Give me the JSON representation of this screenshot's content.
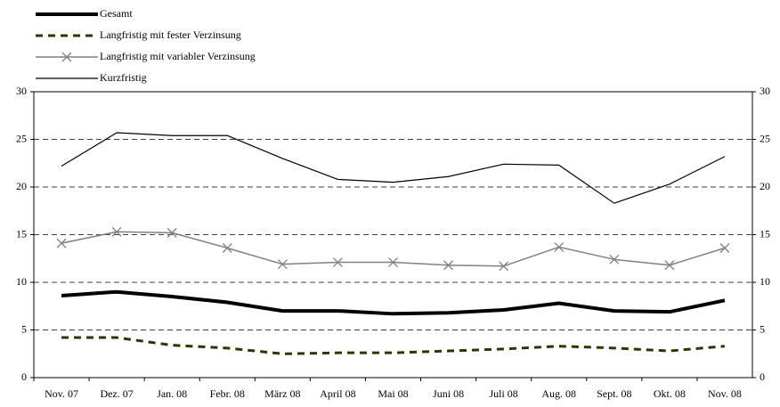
{
  "chart_data": {
    "type": "line",
    "categories": [
      "Nov. 07",
      "Dez. 07",
      "Jan. 08",
      "Febr. 08",
      "März 08",
      "April 08",
      "Mai 08",
      "Juni 08",
      "Juli 08",
      "Aug. 08",
      "Sept. 08",
      "Okt. 08",
      "Nov. 08"
    ],
    "series": [
      {
        "name": "Gesamt",
        "color": "#000000",
        "linewidth": 4,
        "dash": false,
        "marker": null,
        "values": [
          8.6,
          9.0,
          8.5,
          7.9,
          7.0,
          7.0,
          6.7,
          6.8,
          7.1,
          7.8,
          7.0,
          6.9,
          8.1
        ]
      },
      {
        "name": "Langfristig mit fester Verzinsung",
        "color": "#333300",
        "linewidth": 3,
        "dash": true,
        "marker": null,
        "values": [
          4.2,
          4.2,
          3.4,
          3.1,
          2.5,
          2.6,
          2.6,
          2.8,
          3.0,
          3.3,
          3.1,
          2.8,
          3.3
        ]
      },
      {
        "name": "Langfristig mit variabler Verzinsung",
        "color": "#808080",
        "linewidth": 1.5,
        "dash": false,
        "marker": "x",
        "values": [
          14.1,
          15.3,
          15.2,
          13.6,
          11.9,
          12.1,
          12.1,
          11.8,
          11.7,
          13.7,
          12.4,
          11.8,
          13.6
        ]
      },
      {
        "name": "Kurzfristig",
        "color": "#000000",
        "linewidth": 1.2,
        "dash": false,
        "marker": null,
        "values": [
          22.2,
          25.7,
          25.4,
          25.4,
          23.0,
          20.8,
          20.5,
          21.1,
          22.4,
          22.3,
          18.3,
          20.3,
          23.2
        ]
      }
    ],
    "ylim": [
      0,
      30
    ],
    "yticks": [
      0,
      5,
      10,
      15,
      20,
      25,
      30
    ],
    "y2lim": [
      0,
      30
    ],
    "y2ticks": [
      0,
      5,
      10,
      15,
      20,
      25,
      30
    ],
    "grid": true
  }
}
